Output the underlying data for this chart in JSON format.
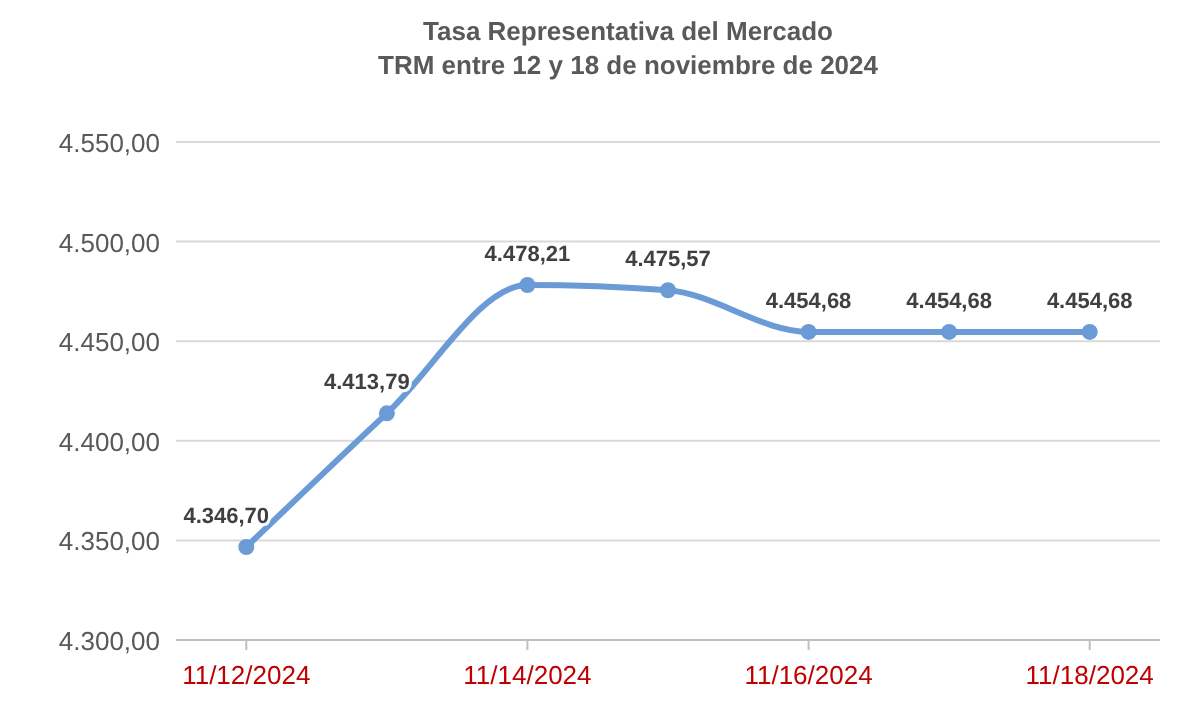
{
  "chart_data": {
    "type": "line",
    "title": "Tasa Representativa del Mercado\nTRM entre 12 y 18 de noviembre de 2024",
    "x": [
      "2024-11-12",
      "2024-11-13",
      "2024-11-14",
      "2024-11-15",
      "2024-11-16",
      "2024-11-17",
      "2024-11-18"
    ],
    "series": [
      {
        "color": "#6a9bd6",
        "values": [
          4346.7,
          4413.79,
          4478.21,
          4475.57,
          4454.68,
          4454.68,
          4454.68
        ],
        "value_labels": [
          "4.346,70",
          "4.413,79",
          "4.478,21",
          "4.475,57",
          "4.454,68",
          "4.454,68",
          "4.454,68"
        ]
      }
    ],
    "xlim": [
      "2024-11-11T12:00",
      "2024-11-18T12:00"
    ],
    "xticks": [
      {
        "value": "2024-11-12",
        "label": "11/12/2024"
      },
      {
        "value": "2024-11-14",
        "label": "11/14/2024"
      },
      {
        "value": "2024-11-16",
        "label": "11/16/2024"
      },
      {
        "value": "2024-11-18",
        "label": "11/18/2024"
      }
    ],
    "ylim": [
      4300,
      4550
    ],
    "yticks": [
      {
        "value": 4300,
        "label": "4.300,00"
      },
      {
        "value": 4350,
        "label": "4.350,00"
      },
      {
        "value": 4400,
        "label": "4.400,00"
      },
      {
        "value": 4450,
        "label": "4.450,00"
      },
      {
        "value": 4500,
        "label": "4.500,00"
      },
      {
        "value": 4550,
        "label": "4.550,00"
      }
    ],
    "grid": "y",
    "marker": "circle",
    "line_style": "solid"
  }
}
